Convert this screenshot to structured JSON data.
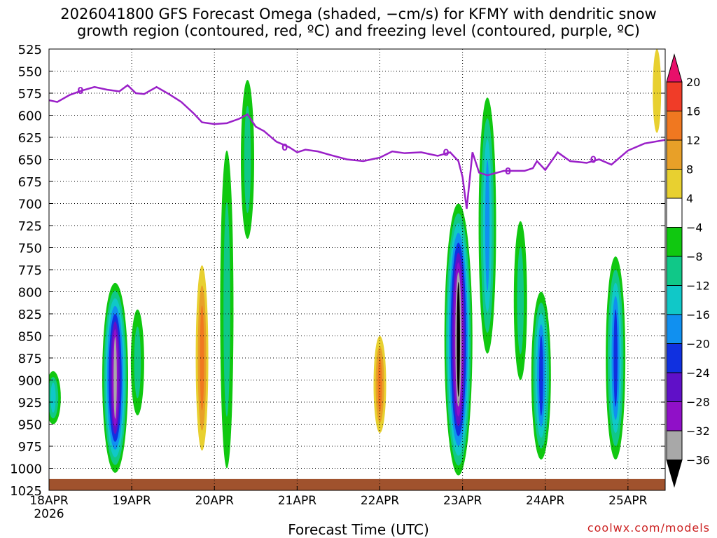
{
  "title_line1": "2026041800 GFS Forecast Omega (shaded, −cm/s) for KFMY with dendritic snow",
  "title_line2": "growth region (contoured, red, ºC) and freezing level (contoured, purple, ºC)",
  "credit": "coolwx.com/models",
  "chart_data": {
    "type": "heatmap",
    "title": "2026041800 GFS Forecast Omega (shaded, −cm/s) for KFMY with dendritic snow growth region (contoured, red, ºC) and freezing level (contoured, purple, ºC)",
    "xlabel": "Forecast Time (UTC)",
    "ylabel": "",
    "x_axis": {
      "unit": "days since 18APR 00Z",
      "range": [
        0,
        7.45
      ],
      "ticks": [
        {
          "value": 0,
          "label": "18APR",
          "sublabel": "2026"
        },
        {
          "value": 1,
          "label": "19APR"
        },
        {
          "value": 2,
          "label": "20APR"
        },
        {
          "value": 3,
          "label": "21APR"
        },
        {
          "value": 4,
          "label": "22APR"
        },
        {
          "value": 5,
          "label": "23APR"
        },
        {
          "value": 6,
          "label": "24APR"
        },
        {
          "value": 7,
          "label": "25APR"
        }
      ]
    },
    "y_axis": {
      "unit": "hPa",
      "inverted": true,
      "range": [
        525,
        1025
      ],
      "ticks": [
        525,
        550,
        575,
        600,
        625,
        650,
        675,
        700,
        725,
        750,
        775,
        800,
        825,
        850,
        875,
        900,
        925,
        950,
        975,
        1000,
        1025
      ]
    },
    "grid": true,
    "colorbar": {
      "levels": [
        "20",
        "16",
        "12",
        "8",
        "4",
        "−4",
        "−8",
        "−12",
        "−16",
        "−20",
        "−24",
        "−28",
        "−32",
        "−36"
      ],
      "colors": [
        "#e8106a",
        "#f03c28",
        "#f07820",
        "#e8a028",
        "#e8d030",
        "#ffffff",
        "#10c810",
        "#10c888",
        "#10c8c8",
        "#1090f0",
        "#1030e0",
        "#6010c8",
        "#9010c8",
        "#a8a8a8",
        "#000000"
      ]
    },
    "freezing_level": {
      "color": "#9a20c8",
      "label": "0",
      "points": [
        [
          0,
          583
        ],
        [
          0.1,
          585
        ],
        [
          0.25,
          577
        ],
        [
          0.4,
          572
        ],
        [
          0.55,
          568
        ],
        [
          0.7,
          571
        ],
        [
          0.85,
          573
        ],
        [
          0.95,
          566
        ],
        [
          1.05,
          575
        ],
        [
          1.15,
          576
        ],
        [
          1.3,
          568
        ],
        [
          1.45,
          576
        ],
        [
          1.6,
          585
        ],
        [
          1.75,
          598
        ],
        [
          1.85,
          608
        ],
        [
          2.0,
          610
        ],
        [
          2.15,
          609
        ],
        [
          2.3,
          604
        ],
        [
          2.4,
          599
        ],
        [
          2.5,
          613
        ],
        [
          2.6,
          618
        ],
        [
          2.75,
          630
        ],
        [
          2.9,
          636
        ],
        [
          3.0,
          642
        ],
        [
          3.1,
          639
        ],
        [
          3.25,
          641
        ],
        [
          3.4,
          645
        ],
        [
          3.6,
          650
        ],
        [
          3.8,
          652
        ],
        [
          4.0,
          648
        ],
        [
          4.15,
          641
        ],
        [
          4.3,
          643
        ],
        [
          4.5,
          642
        ],
        [
          4.7,
          646
        ],
        [
          4.85,
          642
        ],
        [
          4.95,
          652
        ],
        [
          5.0,
          670
        ],
        [
          5.05,
          706
        ],
        [
          5.12,
          642
        ],
        [
          5.2,
          665
        ],
        [
          5.3,
          668
        ],
        [
          5.5,
          663
        ],
        [
          5.75,
          663
        ],
        [
          5.85,
          660
        ],
        [
          5.9,
          652
        ],
        [
          6.0,
          662
        ],
        [
          6.15,
          642
        ],
        [
          6.3,
          652
        ],
        [
          6.5,
          654
        ],
        [
          6.65,
          650
        ],
        [
          6.8,
          656
        ],
        [
          7.0,
          640
        ],
        [
          7.2,
          632
        ],
        [
          7.45,
          628
        ]
      ]
    },
    "omega_features": [
      {
        "t": 0.05,
        "p": [
          950,
          890
        ],
        "peak": "-12"
      },
      {
        "t": 0.8,
        "p": [
          1005,
          790
        ],
        "peak": "-32"
      },
      {
        "t": 1.07,
        "p": [
          940,
          820
        ],
        "peak": "-8"
      },
      {
        "t": 1.85,
        "p": [
          980,
          770
        ],
        "peak": "12"
      },
      {
        "t": 2.15,
        "p": [
          1000,
          640
        ],
        "peak": "-8"
      },
      {
        "t": 2.4,
        "p": [
          560,
          740
        ],
        "peak": "-8"
      },
      {
        "t": 4.0,
        "p": [
          960,
          850
        ],
        "peak": "12"
      },
      {
        "t": 4.95,
        "p": [
          1008,
          700
        ],
        "peak": "-36"
      },
      {
        "t": 5.3,
        "p": [
          870,
          580
        ],
        "peak": "-16"
      },
      {
        "t": 5.7,
        "p": [
          900,
          720
        ],
        "peak": "-8"
      },
      {
        "t": 5.95,
        "p": [
          990,
          800
        ],
        "peak": "-20"
      },
      {
        "t": 6.85,
        "p": [
          990,
          760
        ],
        "peak": "-20"
      },
      {
        "t": 7.35,
        "p": [
          620,
          525
        ],
        "peak": "4"
      }
    ]
  }
}
